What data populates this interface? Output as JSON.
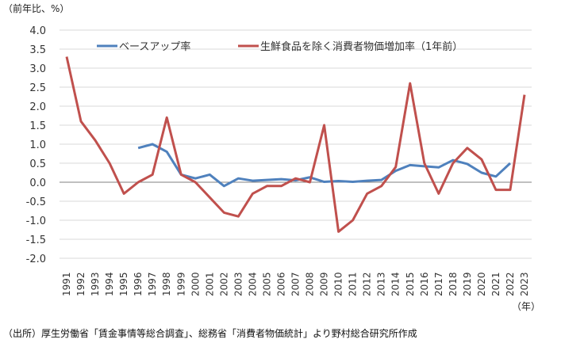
{
  "chart_data": {
    "type": "line",
    "ylabel": "（前年比、%）",
    "xlabel": "（年）",
    "ylim": [
      -2.0,
      4.0
    ],
    "yticks": [
      "4.0",
      "3.5",
      "3.0",
      "2.5",
      "2.0",
      "1.5",
      "1.0",
      "0.5",
      "0.0",
      "-0.5",
      "-1.0",
      "-1.5",
      "-2.0"
    ],
    "x": [
      1991,
      1992,
      1993,
      1994,
      1995,
      1996,
      1997,
      1998,
      1999,
      2000,
      2001,
      2002,
      2003,
      2004,
      2005,
      2006,
      2007,
      2008,
      2009,
      2010,
      2011,
      2012,
      2013,
      2014,
      2015,
      2016,
      2017,
      2018,
      2019,
      2020,
      2021,
      2022,
      2023
    ],
    "legend_position": "top",
    "grid": true,
    "series": [
      {
        "name": "ベースアップ率",
        "color": "#4F81BD",
        "values": [
          null,
          null,
          null,
          null,
          null,
          0.9,
          1.0,
          0.8,
          0.2,
          0.1,
          0.2,
          -0.1,
          0.1,
          0.04,
          0.06,
          0.08,
          0.05,
          0.13,
          0.01,
          0.03,
          0.01,
          0.04,
          0.06,
          0.3,
          0.45,
          0.42,
          0.39,
          0.58,
          0.48,
          0.25,
          0.15,
          0.5,
          null
        ]
      },
      {
        "name": "生鮮食品を除く消費者物価増加率（1年前）",
        "color": "#C0504D",
        "values": [
          3.3,
          1.6,
          1.1,
          0.5,
          -0.3,
          0.0,
          0.2,
          1.7,
          0.2,
          0.0,
          -0.4,
          -0.8,
          -0.9,
          -0.3,
          -0.1,
          -0.1,
          0.1,
          0.0,
          1.5,
          -1.3,
          -1.0,
          -0.3,
          -0.1,
          0.4,
          2.6,
          0.5,
          -0.3,
          0.5,
          0.9,
          0.6,
          -0.2,
          -0.2,
          2.3
        ]
      }
    ]
  },
  "source": "（出所）厚生労働省「賃金事情等総合調査」、総務省「消費者物価統計」より野村総合研究所作成"
}
